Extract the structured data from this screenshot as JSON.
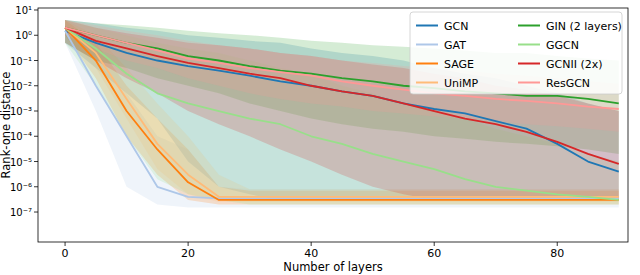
{
  "chart_data": {
    "type": "line",
    "log": "y",
    "legend": "upper right",
    "x_label": "Number of layers",
    "y_label": "Rank-one distance",
    "x": [
      0,
      5,
      10,
      15,
      20,
      25,
      30,
      35,
      40,
      45,
      50,
      55,
      60,
      65,
      70,
      75,
      80,
      85,
      90
    ],
    "xlim": [
      -4.4,
      91.5
    ],
    "xticks": [
      0,
      20,
      40,
      60,
      80
    ],
    "ylim": [
      6.5e-09,
      12
    ],
    "yticks": [
      {
        "value": 1e-07,
        "label": "10⁻⁷"
      },
      {
        "value": 1e-06,
        "label": "10⁻⁶"
      },
      {
        "value": 1e-05,
        "label": "10⁻⁵"
      },
      {
        "value": 0.0001,
        "label": "10⁻⁴"
      },
      {
        "value": 0.001,
        "label": "10⁻³"
      },
      {
        "value": 0.01,
        "label": "10⁻²"
      },
      {
        "value": 0.1,
        "label": "10⁻¹"
      },
      {
        "value": 1,
        "label": "10⁰"
      },
      {
        "value": 10,
        "label": "10¹"
      }
    ],
    "series": [
      {
        "name": "GCN",
        "color": "#1f77b4",
        "values": [
          1.5,
          0.5,
          0.2,
          0.1,
          0.06,
          0.04,
          0.025,
          0.015,
          0.01,
          0.006,
          0.004,
          0.002,
          0.0012,
          0.0008,
          0.0004,
          0.0002,
          5e-05,
          1e-05,
          4e-06
        ],
        "lower": [
          0.5,
          0.05,
          0.005,
          0.0005,
          1e-05,
          1e-06,
          5e-07,
          3e-07,
          3e-07,
          3e-07,
          3e-07,
          3e-07,
          3e-07,
          3e-07,
          3e-07,
          3e-07,
          3e-07,
          3e-07,
          3e-07
        ],
        "upper": [
          4,
          3,
          2,
          1.5,
          1,
          0.8,
          0.6,
          0.5,
          0.3,
          0.2,
          0.15,
          0.1,
          0.05,
          0.03,
          0.02,
          0.01,
          0.005,
          0.002,
          0.001
        ]
      },
      {
        "name": "GAT",
        "color": "#aec7e8",
        "values": [
          1.5,
          0.01,
          0.0001,
          1e-06,
          4e-07,
          3.5e-07,
          3.5e-07,
          3.5e-07,
          3.5e-07,
          3.5e-07,
          3.5e-07,
          3.5e-07,
          3.5e-07,
          3.5e-07,
          3.5e-07,
          3.5e-07,
          3.5e-07,
          3.5e-07,
          3.5e-07
        ],
        "lower": [
          0.5,
          0.001,
          1e-06,
          2e-07,
          1.5e-07,
          1.5e-07,
          1.5e-07,
          1.5e-07,
          1.5e-07,
          1.5e-07,
          1.5e-07,
          1.5e-07,
          1.5e-07,
          1.5e-07,
          1.5e-07,
          1.5e-07,
          1.5e-07,
          1.5e-07,
          1.5e-07
        ],
        "upper": [
          4,
          0.1,
          0.005,
          0.0001,
          3e-05,
          1e-06,
          8e-07,
          8e-07,
          8e-07,
          8e-07,
          8e-07,
          8e-07,
          8e-07,
          8e-07,
          8e-07,
          8e-07,
          8e-07,
          8e-07,
          8e-07
        ]
      },
      {
        "name": "SAGE",
        "color": "#ff7f0e",
        "values": [
          2,
          0.1,
          0.001,
          3e-05,
          1.5e-06,
          3e-07,
          3e-07,
          3e-07,
          3e-07,
          3e-07,
          3e-07,
          3e-07,
          3e-07,
          3e-07,
          3e-07,
          3e-07,
          3e-07,
          3e-07,
          3e-07
        ],
        "lower": [
          1,
          0.02,
          0.0001,
          3e-06,
          3e-07,
          2e-07,
          2e-07,
          2e-07,
          2e-07,
          2e-07,
          2e-07,
          2e-07,
          2e-07,
          2e-07,
          2e-07,
          2e-07,
          2e-07,
          2e-07,
          2e-07
        ],
        "upper": [
          4,
          0.5,
          0.01,
          0.0005,
          3e-05,
          1e-06,
          7e-07,
          7e-07,
          7e-07,
          7e-07,
          7e-07,
          7e-07,
          7e-07,
          7e-07,
          7e-07,
          7e-07,
          7e-07,
          7e-07,
          7e-07
        ]
      },
      {
        "name": "UniMP",
        "color": "#ffbb78",
        "values": [
          2,
          0.2,
          0.003,
          5e-05,
          3e-06,
          4e-07,
          4e-07,
          4e-07,
          4e-07,
          4e-07,
          4e-07,
          4e-07,
          4e-07,
          4e-07,
          4e-07,
          4e-07,
          4e-07,
          4e-07,
          4e-07
        ],
        "lower": [
          1,
          0.05,
          0.0005,
          5e-06,
          5e-07,
          2.5e-07,
          2.5e-07,
          2.5e-07,
          2.5e-07,
          2.5e-07,
          2.5e-07,
          2.5e-07,
          2.5e-07,
          2.5e-07,
          2.5e-07,
          2.5e-07,
          2.5e-07,
          2.5e-07,
          2.5e-07
        ],
        "upper": [
          4,
          1,
          0.05,
          0.002,
          0.0001,
          3e-06,
          8e-07,
          8e-07,
          8e-07,
          8e-07,
          8e-07,
          8e-07,
          8e-07,
          8e-07,
          8e-07,
          8e-07,
          8e-07,
          8e-07,
          8e-07
        ]
      },
      {
        "name": "GIN (2 layers)",
        "color": "#2ca02c",
        "values": [
          2,
          1,
          0.5,
          0.3,
          0.15,
          0.1,
          0.06,
          0.04,
          0.03,
          0.02,
          0.015,
          0.01,
          0.008,
          0.006,
          0.005,
          0.004,
          0.004,
          0.003,
          0.002
        ],
        "lower": [
          0.5,
          0.1,
          0.05,
          0.02,
          0.01,
          0.005,
          0.002,
          0.001,
          0.0005,
          0.0003,
          0.0002,
          0.00015,
          0.0001,
          8e-05,
          6e-05,
          5e-05,
          4e-05,
          3e-05,
          2e-05
        ],
        "upper": [
          4,
          3,
          2.5,
          2,
          1.5,
          1.2,
          1,
          0.8,
          0.6,
          0.5,
          0.4,
          0.35,
          0.3,
          0.25,
          0.2,
          0.2,
          0.15,
          0.12,
          0.1
        ]
      },
      {
        "name": "GGCN",
        "color": "#98df8a",
        "values": [
          2,
          0.3,
          0.03,
          0.005,
          0.002,
          0.001,
          0.0005,
          0.0003,
          0.0001,
          5e-05,
          2e-05,
          1e-05,
          5e-06,
          2e-06,
          1e-06,
          7e-07,
          5e-07,
          4e-07,
          3e-07
        ],
        "lower": [
          0.5,
          0.01,
          0.0001,
          2e-06,
          5e-07,
          3e-07,
          2e-07,
          2e-07,
          2e-07,
          2e-07,
          2e-07,
          2e-07,
          2e-07,
          2e-07,
          2e-07,
          2e-07,
          2e-07,
          2e-07,
          2e-07
        ],
        "upper": [
          4,
          2,
          1,
          0.5,
          0.3,
          0.2,
          0.1,
          0.05,
          0.03,
          0.01,
          0.005,
          0.002,
          0.001,
          0.0005,
          0.0002,
          0.0001,
          5e-05,
          2e-05,
          1e-05
        ]
      },
      {
        "name": "GCNII (2x)",
        "color": "#d62728",
        "values": [
          2,
          0.6,
          0.3,
          0.15,
          0.08,
          0.05,
          0.03,
          0.02,
          0.01,
          0.006,
          0.004,
          0.002,
          0.001,
          0.0005,
          0.0003,
          0.00015,
          6e-05,
          2e-05,
          8e-06
        ],
        "lower": [
          0.5,
          0.1,
          0.02,
          0.005,
          0.001,
          0.0003,
          0.0001,
          3e-05,
          1e-05,
          3e-06,
          1e-06,
          5e-07,
          3e-07,
          3e-07,
          3e-07,
          3e-07,
          3e-07,
          3e-07,
          3e-07
        ],
        "upper": [
          4,
          2,
          1.2,
          0.8,
          0.5,
          0.4,
          0.3,
          0.2,
          0.15,
          0.1,
          0.07,
          0.05,
          0.03,
          0.02,
          0.01,
          0.007,
          0.004,
          0.002,
          0.001
        ]
      },
      {
        "name": "ResGCN",
        "color": "#ff9896",
        "values": [
          2,
          1,
          0.5,
          0.25,
          0.12,
          0.08,
          0.05,
          0.035,
          0.025,
          0.015,
          0.01,
          0.007,
          0.005,
          0.004,
          0.003,
          0.0025,
          0.002,
          0.0015,
          0.0012
        ],
        "lower": [
          1,
          0.3,
          0.1,
          0.05,
          0.02,
          0.01,
          0.005,
          0.003,
          0.002,
          0.0015,
          0.001,
          0.0008,
          0.0006,
          0.0005,
          0.0004,
          0.0003,
          0.00025,
          0.0002,
          0.00015
        ],
        "upper": [
          4,
          2.5,
          1.5,
          1,
          0.6,
          0.4,
          0.3,
          0.2,
          0.15,
          0.1,
          0.08,
          0.06,
          0.05,
          0.04,
          0.03,
          0.025,
          0.02,
          0.015,
          0.012
        ]
      }
    ]
  }
}
